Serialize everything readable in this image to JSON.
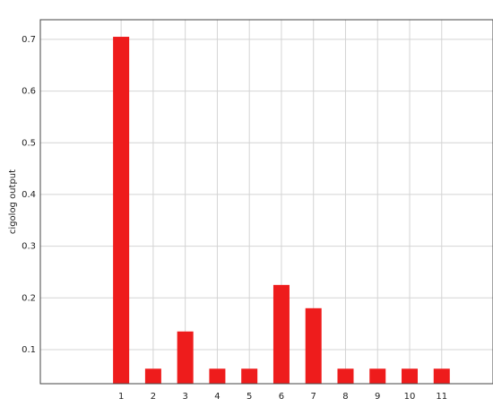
{
  "chart_data": {
    "type": "bar",
    "y_label": "cigolog output",
    "x": [
      1,
      2,
      3,
      4,
      5,
      6,
      7,
      8,
      9,
      10,
      11
    ],
    "values": [
      0.705,
      0.063,
      0.135,
      0.063,
      0.063,
      0.225,
      0.18,
      0.063,
      0.063,
      0.063,
      0.063
    ],
    "color": "#ee1c1c",
    "xlim": [
      -1.52,
      12.6
    ],
    "xticks": [
      1,
      2,
      3,
      4,
      5,
      6,
      7,
      8,
      9,
      10,
      11
    ],
    "ylim": [
      0.034,
      0.738
    ],
    "yticks": [
      0.1,
      0.2,
      0.3,
      0.4,
      0.5,
      0.6,
      0.7
    ],
    "grid": true
  }
}
